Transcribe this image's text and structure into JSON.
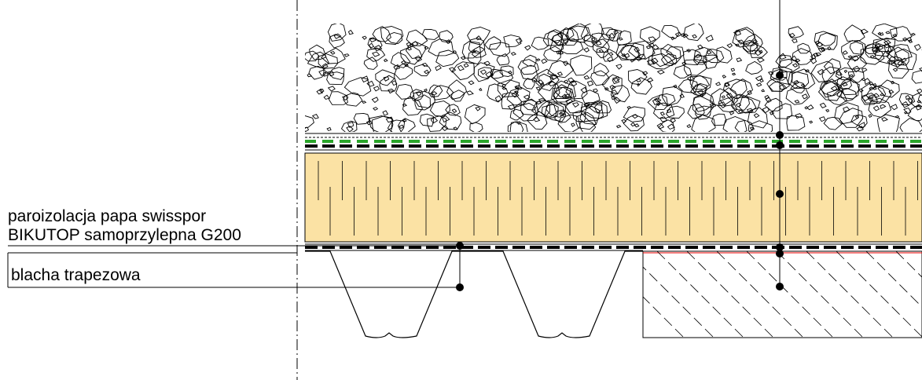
{
  "annotations": {
    "vapor_barrier": {
      "line1": "paroizolacja papa swisspor",
      "line2": "BIKUTOP samoprzylepna G200"
    },
    "sheet": "blacha trapezowa"
  }
}
